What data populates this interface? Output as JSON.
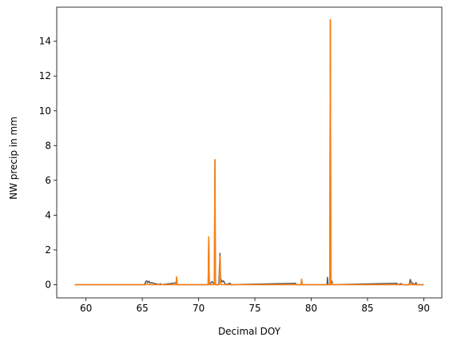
{
  "chart_data": {
    "type": "line",
    "title": "",
    "xlabel": "Decimal DOY",
    "ylabel": "NW precip in mm",
    "xlim": [
      57.4,
      91.6
    ],
    "ylim": [
      -0.76,
      15.96
    ],
    "xticks": [
      60,
      65,
      70,
      75,
      80,
      85,
      90
    ],
    "yticks": [
      0,
      2,
      4,
      6,
      8,
      10,
      12,
      14
    ],
    "grid": false,
    "legend": "none",
    "series": [
      {
        "color": "#5a5a5a",
        "x": [
          59.0,
          65.2,
          65.3,
          65.4,
          65.5,
          65.6,
          65.7,
          65.8,
          66.5,
          66.6,
          66.7,
          68.0,
          68.05,
          68.1,
          70.85,
          70.9,
          70.95,
          71.2,
          71.4,
          71.45,
          71.5,
          71.8,
          71.9,
          71.95,
          72.0,
          72.1,
          72.2,
          72.3,
          72.4,
          72.8,
          72.9,
          78.6,
          78.7,
          79.1,
          79.15,
          79.2,
          81.4,
          81.45,
          81.5,
          81.65,
          81.7,
          81.75,
          81.85,
          81.9,
          87.6,
          87.7,
          88.0,
          88.1,
          88.7,
          88.8,
          88.9,
          89.2,
          89.3,
          89.4,
          90.0
        ],
        "y": [
          0,
          0,
          0.18,
          0.22,
          0.12,
          0.2,
          0.08,
          0.12,
          0,
          0.06,
          0,
          0.1,
          0.4,
          0,
          0,
          2.75,
          0,
          0.18,
          0,
          7.15,
          0,
          0,
          1.8,
          0.25,
          0.3,
          0.15,
          0.22,
          0.12,
          0,
          0.08,
          0,
          0.08,
          0,
          0,
          0.3,
          0,
          0,
          0.42,
          0,
          0,
          15.2,
          0,
          0.2,
          0,
          0.08,
          0,
          0.06,
          0,
          0,
          0.3,
          0.12,
          0,
          0.12,
          0,
          0
        ]
      },
      {
        "color": "#ff7f0e",
        "x": [
          59.0,
          65.3,
          65.4,
          65.5,
          68.0,
          68.05,
          68.1,
          70.85,
          70.9,
          70.95,
          71.4,
          71.45,
          71.5,
          71.85,
          71.9,
          71.95,
          72.0,
          79.1,
          79.15,
          79.2,
          81.65,
          81.7,
          81.75,
          81.85,
          81.9,
          88.75,
          88.8,
          88.85,
          90.0
        ],
        "y": [
          0,
          0,
          0.08,
          0,
          0,
          0.45,
          0,
          0,
          2.75,
          0,
          0,
          7.2,
          0,
          0,
          1.65,
          0.2,
          0,
          0,
          0.32,
          0,
          0,
          15.25,
          0,
          0.1,
          0,
          0,
          0.12,
          0,
          0
        ]
      }
    ]
  }
}
